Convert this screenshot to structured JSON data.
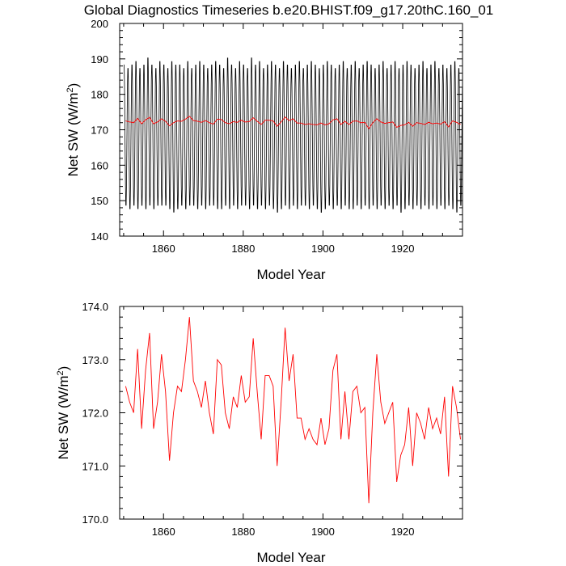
{
  "title": "Global Diagnostics Timeseries b.e20.BHIST.f09_g17.20thC.160_01",
  "chart_data": [
    {
      "type": "line",
      "xlabel": "Model Year",
      "ylabel": "Net SW (W/m",
      "ylabel_sup": "2",
      "ylabel_close": ")",
      "xlim": [
        1849,
        1935
      ],
      "ylim": [
        140,
        200
      ],
      "xticks": [
        1860,
        1880,
        1900,
        1920
      ],
      "yticks": [
        140,
        150,
        160,
        170,
        180,
        190,
        200
      ],
      "series": [
        {
          "kind": "monthly",
          "color": "#000000",
          "start_year": 1850,
          "annual_max": [
            189,
            188,
            189,
            190,
            188,
            189,
            191,
            189,
            188,
            190,
            189,
            188,
            190,
            189,
            189,
            188,
            190,
            188,
            189,
            190,
            189,
            188,
            189,
            190,
            189,
            188,
            191,
            189,
            188,
            190,
            189,
            188,
            191,
            189,
            190,
            188,
            189,
            190,
            189,
            188,
            190,
            189,
            188,
            189,
            190,
            188,
            189,
            190,
            189,
            188,
            189,
            190,
            189,
            188,
            189,
            190,
            188,
            189,
            190,
            188,
            189,
            190,
            189,
            188,
            189,
            190,
            188,
            189,
            190,
            188,
            189,
            190,
            189,
            188,
            189,
            190,
            188,
            189,
            190,
            188,
            189,
            188,
            189,
            190,
            188
          ],
          "annual_min": [
            148,
            147,
            148,
            147,
            148,
            147,
            148,
            147,
            148,
            148,
            148,
            147,
            146,
            147,
            148,
            147,
            148,
            148,
            147,
            148,
            147,
            148,
            148,
            147,
            147,
            148,
            147,
            148,
            147,
            148,
            148,
            147,
            148,
            147,
            148,
            147,
            148,
            147,
            146,
            147,
            148,
            147,
            148,
            147,
            148,
            148,
            147,
            148,
            147,
            146,
            147,
            148,
            147,
            148,
            147,
            148,
            147,
            147,
            148,
            147,
            148,
            147,
            148,
            147,
            148,
            147,
            148,
            147,
            148,
            146,
            147,
            148,
            147,
            148,
            147,
            148,
            147,
            148,
            147,
            148,
            147,
            148,
            147,
            146,
            148
          ]
        },
        {
          "kind": "annual",
          "color": "#ff0000",
          "years": [
            1850,
            1851,
            1852,
            1853,
            1854,
            1855,
            1856,
            1857,
            1858,
            1859,
            1860,
            1861,
            1862,
            1863,
            1864,
            1865,
            1866,
            1867,
            1868,
            1869,
            1870,
            1871,
            1872,
            1873,
            1874,
            1875,
            1876,
            1877,
            1878,
            1879,
            1880,
            1881,
            1882,
            1883,
            1884,
            1885,
            1886,
            1887,
            1888,
            1889,
            1890,
            1891,
            1892,
            1893,
            1894,
            1895,
            1896,
            1897,
            1898,
            1899,
            1900,
            1901,
            1902,
            1903,
            1904,
            1905,
            1906,
            1907,
            1908,
            1909,
            1910,
            1911,
            1912,
            1913,
            1914,
            1915,
            1916,
            1917,
            1918,
            1919,
            1920,
            1921,
            1922,
            1923,
            1924,
            1925,
            1926,
            1927,
            1928,
            1929,
            1930,
            1931,
            1932,
            1933,
            1934
          ],
          "values": [
            172.5,
            172.2,
            172.0,
            173.2,
            171.7,
            172.8,
            173.5,
            171.7,
            172.2,
            173.1,
            172.4,
            171.1,
            172.0,
            172.5,
            172.4,
            173.0,
            173.8,
            172.6,
            172.4,
            172.1,
            172.6,
            172.0,
            171.6,
            173.0,
            172.9,
            172.0,
            171.7,
            172.3,
            172.1,
            172.7,
            172.2,
            172.3,
            173.4,
            172.4,
            171.5,
            172.7,
            172.7,
            172.5,
            171.0,
            172.2,
            173.6,
            172.6,
            173.1,
            171.9,
            171.9,
            171.5,
            171.7,
            171.5,
            171.4,
            171.9,
            171.4,
            171.7,
            172.8,
            173.1,
            171.5,
            172.4,
            171.5,
            172.4,
            172.5,
            172.0,
            172.1,
            170.3,
            172.0,
            173.1,
            172.2,
            171.8,
            172.0,
            172.2,
            170.7,
            171.2,
            171.4,
            172.1,
            171.0,
            172.0,
            171.8,
            171.5,
            172.1,
            171.7,
            171.9,
            171.6,
            172.3,
            170.8,
            172.5,
            172.1,
            171.5
          ]
        }
      ]
    },
    {
      "type": "line",
      "xlabel": "Model Year",
      "ylabel": "Net SW (W/m",
      "ylabel_sup": "2",
      "ylabel_close": ")",
      "xlim": [
        1849,
        1935
      ],
      "ylim": [
        170.0,
        174.0
      ],
      "xticks": [
        1860,
        1880,
        1900,
        1920
      ],
      "yticks": [
        "170.0",
        "171.0",
        "172.0",
        "173.0",
        "174.0"
      ],
      "series": [
        {
          "kind": "annual",
          "color": "#ff0000",
          "ref": "chart0_annual"
        }
      ]
    }
  ]
}
